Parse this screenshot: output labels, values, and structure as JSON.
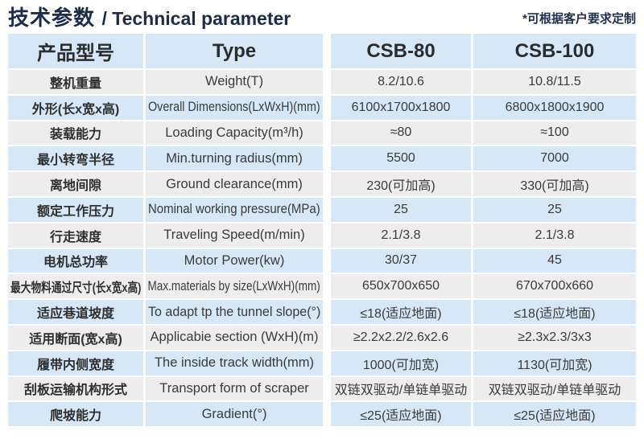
{
  "header": {
    "title_zh": "技术参数",
    "title_en": "/ Technical parameter",
    "note": "*可根据客户要求定制"
  },
  "table": {
    "columns": [
      "产品型号",
      "Type",
      "CSB-80",
      "CSB-100"
    ],
    "rows": [
      {
        "name_zh": "整机重量",
        "type": "Weight(T)",
        "csb80": "8.2/10.6",
        "csb100": "10.8/11.5"
      },
      {
        "name_zh": "外形(长x宽x高)",
        "type": "Overall Dimensions(LxWxH)(mm)",
        "csb80": "6100x1700x1800",
        "csb100": "6800x1800x1900"
      },
      {
        "name_zh": "装载能力",
        "type": "Loading Capacity(m³/h)",
        "csb80": "≈80",
        "csb100": "≈100"
      },
      {
        "name_zh": "最小转弯半径",
        "type": "Min.turning radius(mm)",
        "csb80": "5500",
        "csb100": "7000"
      },
      {
        "name_zh": "离地间隙",
        "type": "Ground clearance(mm)",
        "csb80": "230(可加高)",
        "csb100": "330(可加高)"
      },
      {
        "name_zh": "额定工作压力",
        "type": "Nominal working pressure(MPa)",
        "csb80": "25",
        "csb100": "25"
      },
      {
        "name_zh": "行走速度",
        "type": "Traveling Speed(m/min)",
        "csb80": "2.1/3.8",
        "csb100": "2.1/3.8"
      },
      {
        "name_zh": "电机总功率",
        "type": "Motor Power(kw)",
        "csb80": "30/37",
        "csb100": "45"
      },
      {
        "name_zh": "最大物料通过尺寸(长x宽x高)",
        "type": "Max.materials by size(LxWxH)(mm)",
        "csb80": "650x700x650",
        "csb100": "670x700x660"
      },
      {
        "name_zh": "适应巷道坡度",
        "type": "To adapt tp the tunnel slope(°)",
        "csb80": "≤18(适应地面)",
        "csb100": "≤18(适应地面)"
      },
      {
        "name_zh": "适用断面(宽x高)",
        "type": "Applicabie section (WxH)(m)",
        "csb80": "≥2.2x2.2/2.6x2.6",
        "csb100": "≥2.3x2.3/3x3"
      },
      {
        "name_zh": "履带内侧宽度",
        "type": "The inside track width(mm)",
        "csb80": "1000(可加宽)",
        "csb100": "1130(可加宽)"
      },
      {
        "name_zh": "刮板运输机构形式",
        "type": "Transport form of scraper",
        "csb80": "双链双驱动/单链单驱动",
        "csb100": "双链双驱动/单链单驱动"
      },
      {
        "name_zh": "爬坡能力",
        "type": "Gradient(°)",
        "csb80": "≤25(适应地面)",
        "csb100": "≤25(适应地面)"
      }
    ]
  },
  "colors": {
    "header_blue": "#d6e8f7",
    "row_gray": "#ededed",
    "row_blue": "#d6e8f7",
    "title_navy": "#1d2b4a",
    "text": "#333333"
  }
}
